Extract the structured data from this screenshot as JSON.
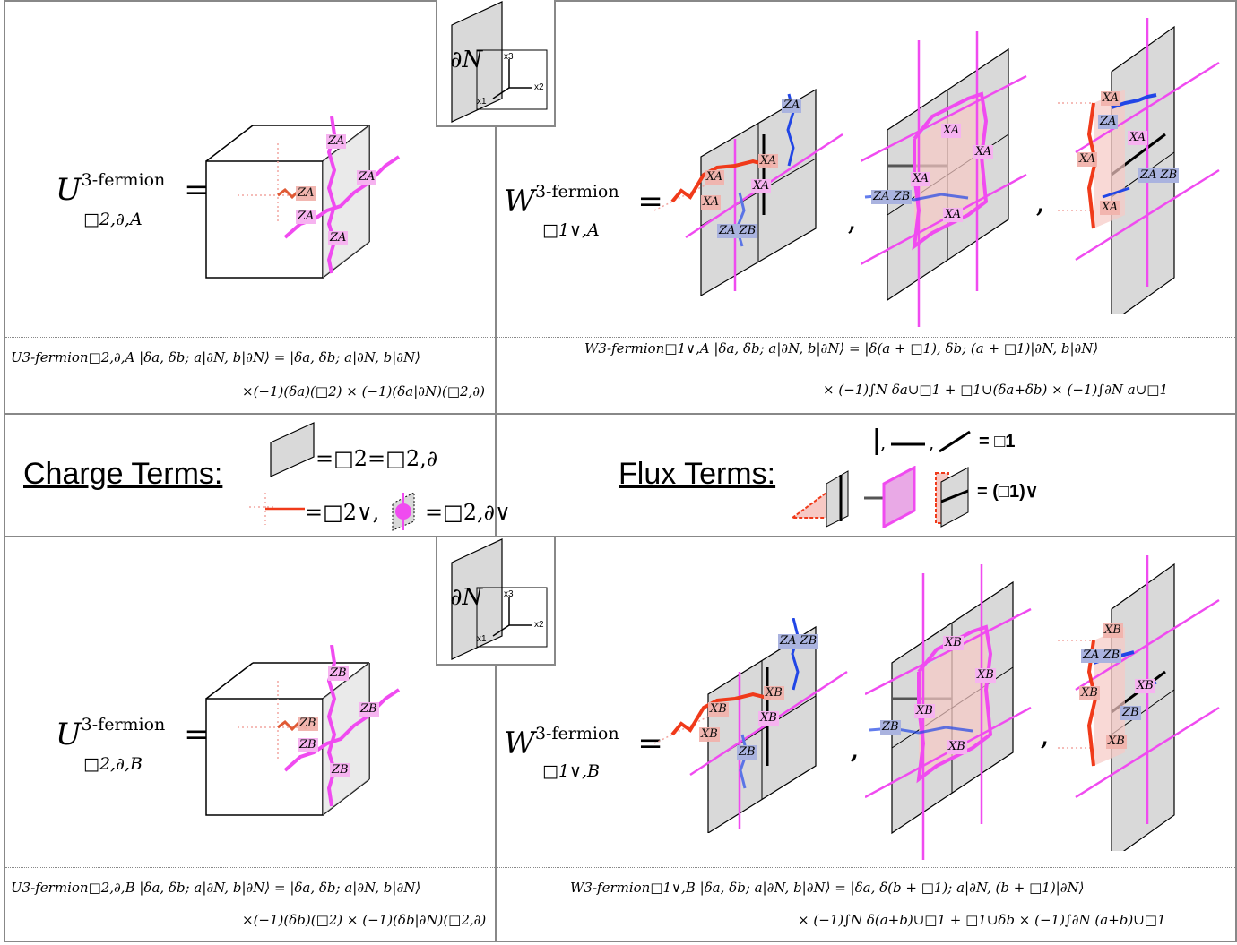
{
  "colors": {
    "magenta": "#f04bf0",
    "red": "#f03a1a",
    "blue": "#2146e6",
    "plate_gray": "#d9d9d9",
    "frame_gray": "#888888"
  },
  "top": {
    "U_eq": {
      "lhs_base": "U",
      "lhs_sup": "3-fermion",
      "lhs_sub": "□2,∂,A",
      "equals": "="
    },
    "W_eq": {
      "lhs_base": "W",
      "lhs_sup": "3-fermion",
      "lhs_sub": "□1∨,A",
      "equals": "=",
      "comma1": ",",
      "comma2": ","
    },
    "boundary_label": "∂N",
    "axis_x1": "x1",
    "axis_x2": "x2",
    "axis_x3": "x3",
    "U_labels": [
      "ZA",
      "ZA",
      "ZA",
      "ZA",
      "ZA"
    ],
    "W1_labels": [
      "ZA",
      "XA",
      "XA",
      "XA",
      "XA",
      "ZA ZB"
    ],
    "W2_labels": [
      "XA",
      "XA",
      "XA",
      "ZA ZB",
      "XA"
    ],
    "W3_labels": [
      "XA",
      "ZA",
      "XA",
      "XA",
      "ZA ZB",
      "XA"
    ],
    "U_action_line1": "U3-fermion□2,∂,A |δa, δb; a|∂N, b|∂N⟩ = |δa, δb; a|∂N, b|∂N⟩",
    "U_action_line2": "×(−1)(δa)(□2) × (−1)(δa|∂N)(□2,∂)",
    "W_action_line1": "W3-fermion□1∨,A |δa, δb; a|∂N, b|∂N⟩ = |δ(a + □1), δb; (a + □1)|∂N, b|∂N⟩",
    "W_action_line2": "× (−1)∫N δa∪□1 + □1∪(δa+δb) × (−1)∫∂N a∪□1"
  },
  "middle": {
    "charge_title": "Charge Terms:",
    "charge_eq1": "=□2=□2,∂",
    "charge_eq2": "=□2∨,",
    "charge_eq3": "=□2,∂∨",
    "flux_title": "Flux Terms:",
    "flux_eq1": "= □1",
    "flux_eq2": "= (□1)∨",
    "flux_commas": ","
  },
  "bottom": {
    "U_eq": {
      "lhs_base": "U",
      "lhs_sup": "3-fermion",
      "lhs_sub": "□2,∂,B",
      "equals": "="
    },
    "W_eq": {
      "lhs_base": "W",
      "lhs_sup": "3-fermion",
      "lhs_sub": "□1∨,B",
      "equals": "=",
      "comma1": ",",
      "comma2": ","
    },
    "boundary_label": "∂N",
    "axis_x1": "x1",
    "axis_x2": "x2",
    "axis_x3": "x3",
    "U_labels": [
      "ZB",
      "ZB",
      "ZB",
      "ZB",
      "ZB"
    ],
    "W1_labels": [
      "ZA ZB",
      "XB",
      "XB",
      "XB",
      "XB",
      "ZB"
    ],
    "W2_labels": [
      "XB",
      "XB",
      "XB",
      "ZB",
      "XB"
    ],
    "W3_labels": [
      "XB",
      "ZA ZB",
      "XB",
      "XB",
      "ZB",
      "XB"
    ],
    "U_action_line1": "U3-fermion□2,∂,B |δa, δb; a|∂N, b|∂N⟩ = |δa, δb; a|∂N, b|∂N⟩",
    "U_action_line2": "×(−1)(δb)(□2) × (−1)(δb|∂N)(□2,∂)",
    "W_action_line1": "W3-fermion□1∨,B |δa, δb; a|∂N, b|∂N⟩ = |δa, δ(b + □1); a|∂N, (b + □1)|∂N⟩",
    "W_action_line2": "× (−1)∫N δ(a+b)∪□1 + □1∪δb × (−1)∫∂N (a+b)∪□1"
  }
}
